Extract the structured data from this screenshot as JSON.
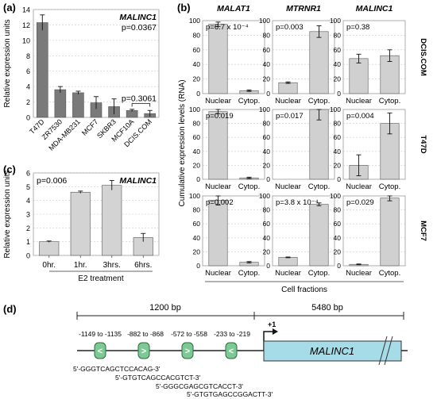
{
  "panels": {
    "a": {
      "letter": "(a)"
    },
    "b": {
      "letter": "(b)"
    },
    "c": {
      "letter": "(c)"
    },
    "d": {
      "letter": "(d)"
    }
  },
  "chart_data": [
    {
      "id": "a",
      "type": "bar",
      "title": "MALINC1",
      "ylabel": "Relative expression units",
      "xlabel": "",
      "ylim": [
        0,
        14
      ],
      "yticks": [
        0,
        2,
        4,
        6,
        8,
        10,
        12,
        14
      ],
      "categories": [
        "T47D",
        "ZR7530",
        "MDA-MB231",
        "MCF7",
        "SKBR3",
        "MCF10A",
        "DCIS.COM"
      ],
      "values": [
        12.3,
        3.6,
        3.2,
        1.9,
        1.4,
        0.9,
        0.5
      ],
      "errors": [
        1.0,
        0.4,
        0.2,
        0.8,
        1.0,
        0.15,
        0.4
      ],
      "bar_color": "#7a7a7a",
      "annotations": [
        {
          "text": "p=0.0367"
        },
        {
          "text": "p=0.3061"
        }
      ],
      "grid": true
    },
    {
      "id": "b",
      "type": "bar",
      "ylabel": "Cumulative expression levels (RNA)",
      "xlabel": "Cell fractions",
      "ylim": [
        0,
        100
      ],
      "yticks": [
        0,
        20,
        40,
        60,
        80,
        100
      ],
      "columns": [
        "MALAT1",
        "MTRNR1",
        "MALINC1"
      ],
      "rows": [
        "DCIS.COM",
        "T47D",
        "MCF7"
      ],
      "categories": [
        "Nuclear",
        "Cytop."
      ],
      "bar_color": "#d0d0d0",
      "grid": true,
      "subplots": [
        {
          "row": "DCIS.COM",
          "column": "MALAT1",
          "values": [
            95,
            4
          ],
          "errors": [
            3,
            1
          ],
          "p": "p=6.7 x 10⁻⁴"
        },
        {
          "row": "DCIS.COM",
          "column": "MTRNR1",
          "values": [
            15,
            85
          ],
          "errors": [
            1,
            8
          ],
          "p": "p=0.003"
        },
        {
          "row": "DCIS.COM",
          "column": "MALINC1",
          "values": [
            48,
            52
          ],
          "errors": [
            6,
            8
          ],
          "p": "p=0.38"
        },
        {
          "row": "T47D",
          "column": "MALAT1",
          "values": [
            97,
            2
          ],
          "errors": [
            3,
            1
          ],
          "p": "p=0.019"
        },
        {
          "row": "T47D",
          "column": "MTRNR1",
          "values": [
            0,
            100
          ],
          "errors": [
            0,
            15
          ],
          "p": "p=0.017"
        },
        {
          "row": "T47D",
          "column": "MALINC1",
          "values": [
            20,
            80
          ],
          "errors": [
            15,
            15
          ],
          "p": "p=0.004"
        },
        {
          "row": "MCF7",
          "column": "MALAT1",
          "values": [
            94,
            5
          ],
          "errors": [
            7,
            1
          ],
          "p": "p=0.002"
        },
        {
          "row": "MCF7",
          "column": "MTRNR1",
          "values": [
            12,
            88
          ],
          "errors": [
            0.5,
            2
          ],
          "p": "p=3.8 x 10⁻⁴"
        },
        {
          "row": "MCF7",
          "column": "MALINC1",
          "values": [
            2,
            97
          ],
          "errors": [
            0.5,
            4
          ],
          "p": "p=0.029"
        }
      ]
    },
    {
      "id": "c",
      "type": "bar",
      "title": "MALINC1",
      "ylabel": "Relative expression units",
      "xlabel": "E2 treatment",
      "ylim": [
        0,
        6
      ],
      "yticks": [
        0,
        1,
        2,
        3,
        4,
        5,
        6
      ],
      "categories": [
        "0hr.",
        "1hr.",
        "3hrs.",
        "6hrs."
      ],
      "values": [
        1.0,
        4.6,
        5.1,
        1.3
      ],
      "errors": [
        0.05,
        0.08,
        0.35,
        0.3
      ],
      "bar_color": "#d3d3d3",
      "annotations": [
        {
          "text": "p=0.006"
        }
      ],
      "grid": true
    }
  ],
  "diagram": {
    "upstream_bp": "1200 bp",
    "gene_bp": "5480 bp",
    "tss": "+1",
    "gene_name": "MALINC1",
    "gene_color": "#a6dbe8",
    "ere_color": "#7dc995",
    "ere_sites": [
      {
        "range": "-1149 to -1135",
        "arrow": "<"
      },
      {
        "range": "-882 to -868",
        "arrow": ">"
      },
      {
        "range": "-572 to -558",
        "arrow": ">"
      },
      {
        "range": "-233 to -219",
        "arrow": "<"
      }
    ],
    "sequences": [
      "5'-GGGTCAGCTCCACAG-3'",
      "5'-GTGTCAGCCACGTCT-3'",
      "5'-GGGCGAGCGTCACCT-3'",
      "5'-GTGTGAGCCGGACTT-3'"
    ]
  }
}
